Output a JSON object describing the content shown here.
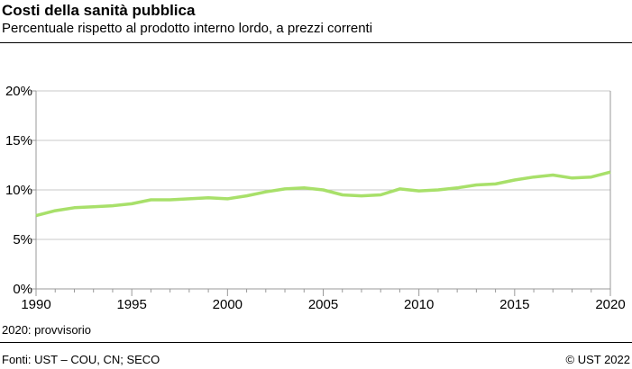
{
  "title": "Costi della sanità pubblica",
  "subtitle": "Percentuale rispetto al prodotto interno lordo, a prezzi correnti",
  "note": "2020: provvisorio",
  "source": "Fonti: UST – COU, CN; SECO",
  "copyright": "© UST 2022",
  "colors": {
    "line": "#a8e06a",
    "grid": "#c8c8c8"
  },
  "chart_data": {
    "type": "line",
    "x": [
      1990,
      1991,
      1992,
      1993,
      1994,
      1995,
      1996,
      1997,
      1998,
      1999,
      2000,
      2001,
      2002,
      2003,
      2004,
      2005,
      2006,
      2007,
      2008,
      2009,
      2010,
      2011,
      2012,
      2013,
      2014,
      2015,
      2016,
      2017,
      2018,
      2019,
      2020
    ],
    "series": [
      {
        "values": [
          7.4,
          7.9,
          8.2,
          8.3,
          8.4,
          8.6,
          9.0,
          9.0,
          9.1,
          9.2,
          9.1,
          9.4,
          9.8,
          10.1,
          10.2,
          10.0,
          9.5,
          9.4,
          9.5,
          10.1,
          9.9,
          10.0,
          10.2,
          10.5,
          10.6,
          11.0,
          11.3,
          11.5,
          11.2,
          11.3,
          11.8
        ]
      }
    ],
    "xlim": [
      1990,
      2020
    ],
    "ylim": [
      0,
      20
    ],
    "xticks": [
      "1990",
      "1995",
      "2000",
      "2005",
      "2010",
      "2015",
      "2020"
    ],
    "yticks": [
      "0%",
      "5%",
      "10%",
      "15%",
      "20%"
    ],
    "grid": true
  }
}
